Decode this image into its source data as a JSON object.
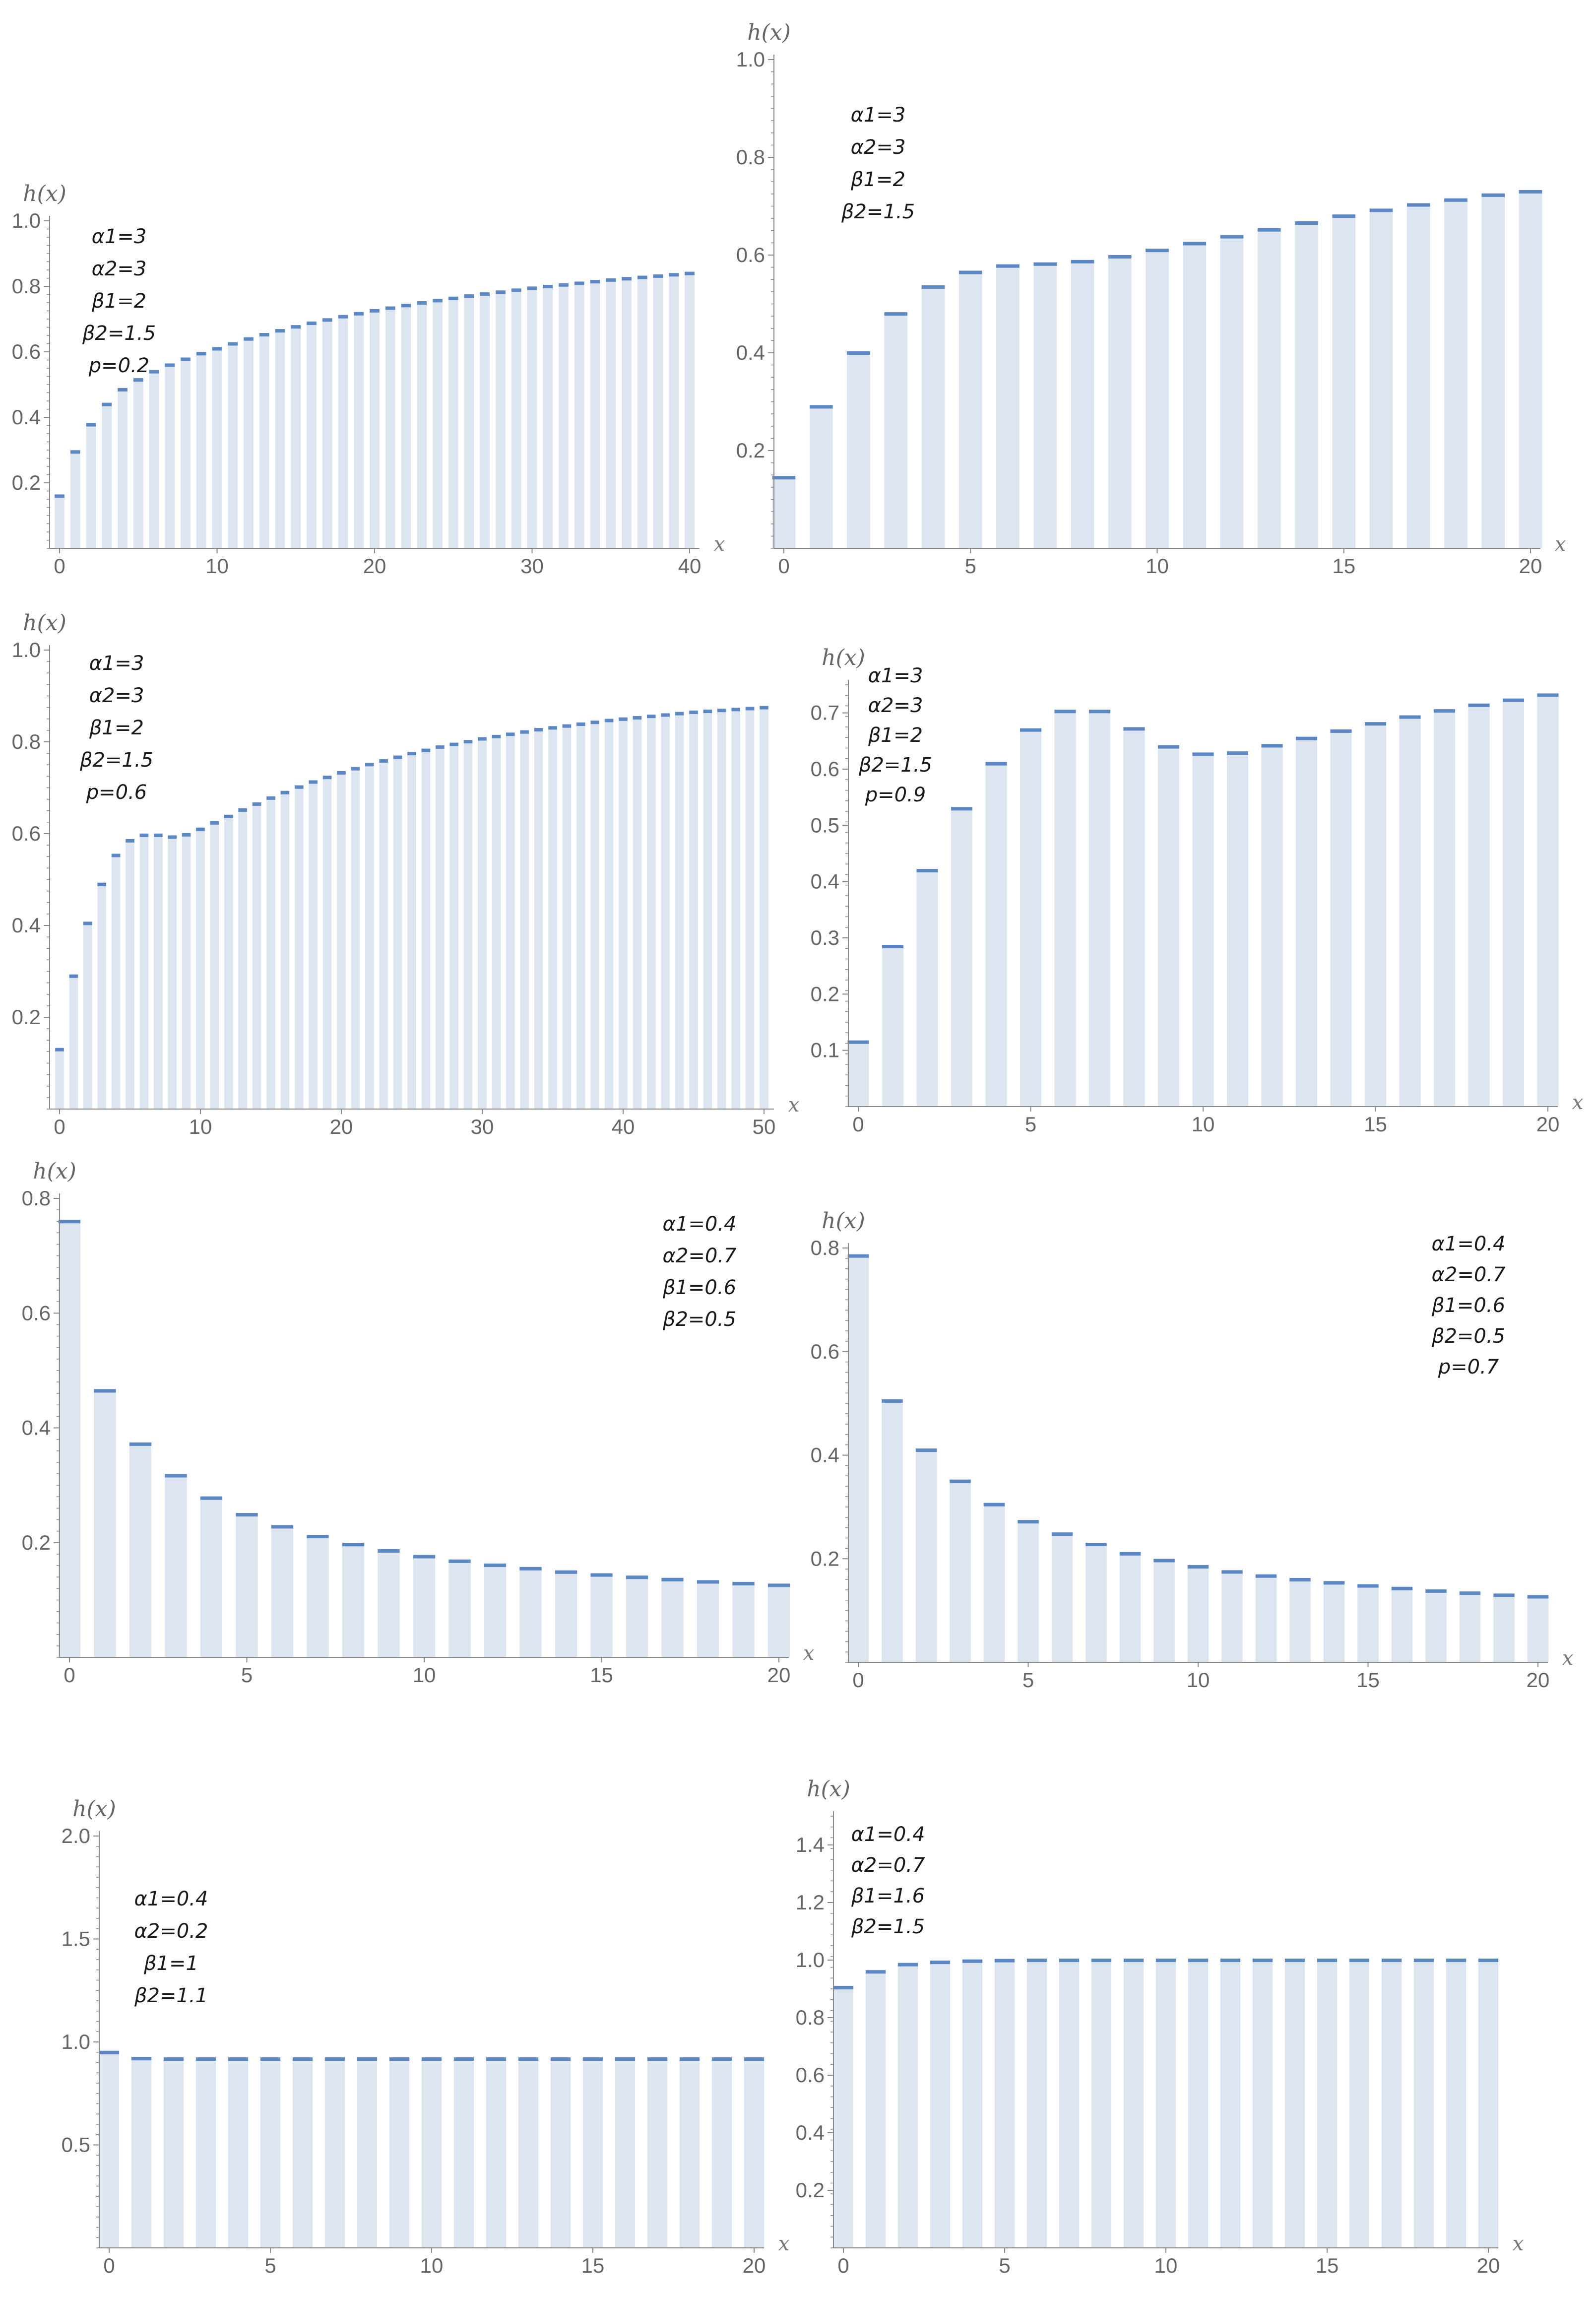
{
  "chart_data": [
    {
      "type": "bar",
      "ylabel": "h(x)",
      "xlabel": "x",
      "xlim": [
        0,
        40
      ],
      "ylim": [
        0,
        1.0
      ],
      "xticks": [
        0,
        10,
        20,
        30,
        40
      ],
      "yticks": [
        "0.2",
        "0.4",
        "0.6",
        "0.8",
        "1.0"
      ],
      "params": [
        "α1=3",
        "α2=3",
        "β1=2",
        "β2=1.5",
        "p=0.2"
      ],
      "legend": "top-left",
      "x": [
        0,
        1,
        2,
        3,
        4,
        5,
        6,
        7,
        8,
        9,
        10,
        11,
        12,
        13,
        14,
        15,
        16,
        17,
        18,
        19,
        20,
        21,
        22,
        23,
        24,
        25,
        26,
        27,
        28,
        29,
        30,
        31,
        32,
        33,
        34,
        35,
        36,
        37,
        38,
        39,
        40
      ],
      "values": [
        0.16,
        0.295,
        0.378,
        0.44,
        0.485,
        0.515,
        0.54,
        0.56,
        0.578,
        0.595,
        0.61,
        0.625,
        0.64,
        0.653,
        0.665,
        0.677,
        0.688,
        0.698,
        0.708,
        0.717,
        0.726,
        0.734,
        0.742,
        0.75,
        0.757,
        0.764,
        0.771,
        0.777,
        0.783,
        0.789,
        0.795,
        0.8,
        0.805,
        0.81,
        0.815,
        0.82,
        0.824,
        0.828,
        0.832,
        0.836,
        0.84
      ]
    },
    {
      "type": "bar",
      "ylabel": "h(x)",
      "xlabel": "x",
      "xlim": [
        0,
        20
      ],
      "ylim": [
        0,
        1.0
      ],
      "xticks": [
        0,
        5,
        10,
        15,
        20
      ],
      "yticks": [
        "0.2",
        "0.4",
        "0.6",
        "0.8",
        "1.0"
      ],
      "params": [
        "α1=3",
        "α2=3",
        "β1=2",
        "β2=1.5"
      ],
      "legend": "top-left",
      "x": [
        0,
        1,
        2,
        3,
        4,
        5,
        6,
        7,
        8,
        9,
        10,
        11,
        12,
        13,
        14,
        15,
        16,
        17,
        18,
        19,
        20
      ],
      "values": [
        0.145,
        0.29,
        0.4,
        0.48,
        0.535,
        0.565,
        0.578,
        0.582,
        0.587,
        0.597,
        0.61,
        0.624,
        0.638,
        0.652,
        0.666,
        0.68,
        0.692,
        0.703,
        0.713,
        0.723,
        0.73
      ]
    },
    {
      "type": "bar",
      "ylabel": "h(x)",
      "xlabel": "x",
      "xlim": [
        0,
        50
      ],
      "ylim": [
        0,
        1.0
      ],
      "xticks": [
        0,
        10,
        20,
        30,
        40,
        50
      ],
      "yticks": [
        "0.2",
        "0.4",
        "0.6",
        "0.8",
        "1.0"
      ],
      "params": [
        "α1=3",
        "α2=3",
        "β1=2",
        "β2=1.5",
        "p=0.6"
      ],
      "legend": "top-left",
      "x": [
        0,
        1,
        2,
        3,
        4,
        5,
        6,
        7,
        8,
        9,
        10,
        11,
        12,
        13,
        14,
        15,
        16,
        17,
        18,
        19,
        20,
        21,
        22,
        23,
        24,
        25,
        26,
        27,
        28,
        29,
        30,
        31,
        32,
        33,
        34,
        35,
        36,
        37,
        38,
        39,
        40,
        41,
        42,
        43,
        44,
        45,
        46,
        47,
        48,
        49,
        50
      ],
      "values": [
        0.13,
        0.29,
        0.405,
        0.49,
        0.553,
        0.585,
        0.597,
        0.597,
        0.593,
        0.598,
        0.61,
        0.624,
        0.638,
        0.652,
        0.665,
        0.678,
        0.69,
        0.702,
        0.713,
        0.723,
        0.733,
        0.742,
        0.751,
        0.759,
        0.767,
        0.775,
        0.782,
        0.789,
        0.795,
        0.801,
        0.807,
        0.812,
        0.817,
        0.822,
        0.827,
        0.831,
        0.835,
        0.839,
        0.843,
        0.847,
        0.85,
        0.853,
        0.856,
        0.859,
        0.862,
        0.865,
        0.867,
        0.869,
        0.871,
        0.873,
        0.875
      ]
    },
    {
      "type": "bar",
      "ylabel": "h(x)",
      "xlabel": "x",
      "xlim": [
        0,
        20
      ],
      "ylim": [
        0,
        0.75
      ],
      "xticks": [
        0,
        5,
        10,
        15,
        20
      ],
      "yticks": [
        "0.1",
        "0.2",
        "0.3",
        "0.4",
        "0.5",
        "0.6",
        "0.7"
      ],
      "params": [
        "α1=3",
        "α2=3",
        "β1=2",
        "β2=1.5",
        "p=0.9"
      ],
      "legend": "top-left",
      "x": [
        0,
        1,
        2,
        3,
        4,
        5,
        6,
        7,
        8,
        9,
        10,
        11,
        12,
        13,
        14,
        15,
        16,
        17,
        18,
        19,
        20
      ],
      "values": [
        0.115,
        0.285,
        0.42,
        0.53,
        0.61,
        0.67,
        0.703,
        0.703,
        0.672,
        0.64,
        0.627,
        0.629,
        0.642,
        0.655,
        0.668,
        0.681,
        0.693,
        0.704,
        0.714,
        0.723,
        0.732
      ]
    },
    {
      "type": "bar",
      "ylabel": "h(x)",
      "xlabel": "x",
      "xlim": [
        0,
        20
      ],
      "ylim": [
        0,
        0.8
      ],
      "xticks": [
        0,
        5,
        10,
        15,
        20
      ],
      "yticks": [
        "0.2",
        "0.4",
        "0.6",
        "0.8"
      ],
      "params": [
        "α1=0.4",
        "α2=0.7",
        "β1=0.6",
        "β2=0.5"
      ],
      "legend": "top-right",
      "x": [
        0,
        1,
        2,
        3,
        4,
        5,
        6,
        7,
        8,
        9,
        10,
        11,
        12,
        13,
        14,
        15,
        16,
        17,
        18,
        19,
        20
      ],
      "values": [
        0.76,
        0.465,
        0.372,
        0.317,
        0.278,
        0.249,
        0.228,
        0.211,
        0.197,
        0.186,
        0.176,
        0.168,
        0.161,
        0.155,
        0.149,
        0.144,
        0.14,
        0.136,
        0.132,
        0.129,
        0.126
      ]
    },
    {
      "type": "bar",
      "ylabel": "h(x)",
      "xlabel": "x",
      "xlim": [
        0,
        20
      ],
      "ylim": [
        0,
        0.8
      ],
      "xticks": [
        0,
        5,
        10,
        15,
        20
      ],
      "yticks": [
        "0.2",
        "0.4",
        "0.6",
        "0.8"
      ],
      "params": [
        "α1=0.4",
        "α2=0.7",
        "β1=0.6",
        "β2=0.5",
        "p=0.7"
      ],
      "legend": "top-right",
      "x": [
        0,
        1,
        2,
        3,
        4,
        5,
        6,
        7,
        8,
        9,
        10,
        11,
        12,
        13,
        14,
        15,
        16,
        17,
        18,
        19,
        20
      ],
      "values": [
        0.785,
        0.505,
        0.41,
        0.35,
        0.305,
        0.272,
        0.248,
        0.228,
        0.21,
        0.197,
        0.185,
        0.175,
        0.167,
        0.16,
        0.154,
        0.148,
        0.143,
        0.138,
        0.134,
        0.13,
        0.127
      ]
    },
    {
      "type": "bar",
      "ylabel": "h(x)",
      "xlabel": "x",
      "xlim": [
        0,
        20
      ],
      "ylim": [
        0,
        2.0
      ],
      "xticks": [
        0,
        5,
        10,
        15,
        20
      ],
      "yticks": [
        "0.5",
        "1.0",
        "1.5",
        "2.0"
      ],
      "params": [
        "α1=0.4",
        "α2=0.2",
        "β1=1",
        "β2=1.1"
      ],
      "legend": "top-left",
      "x": [
        0,
        1,
        2,
        3,
        4,
        5,
        6,
        7,
        8,
        9,
        10,
        11,
        12,
        13,
        14,
        15,
        16,
        17,
        18,
        19,
        20
      ],
      "values": [
        0.95,
        0.92,
        0.918,
        0.918,
        0.918,
        0.918,
        0.918,
        0.918,
        0.918,
        0.918,
        0.918,
        0.918,
        0.918,
        0.918,
        0.918,
        0.918,
        0.918,
        0.918,
        0.918,
        0.918,
        0.918
      ]
    },
    {
      "type": "bar",
      "ylabel": "h(x)",
      "xlabel": "x",
      "xlim": [
        0,
        20
      ],
      "ylim": [
        0,
        1.5
      ],
      "xticks": [
        0,
        5,
        10,
        15,
        20
      ],
      "yticks": [
        "0.2",
        "0.4",
        "0.6",
        "0.8",
        "1.0",
        "1.2",
        "1.4"
      ],
      "params": [
        "α1=0.4",
        "α2=0.7",
        "β1=1.6",
        "β2=1.5"
      ],
      "legend": "top-left",
      "x": [
        0,
        1,
        2,
        3,
        4,
        5,
        6,
        7,
        8,
        9,
        10,
        11,
        12,
        13,
        14,
        15,
        16,
        17,
        18,
        19,
        20
      ],
      "values": [
        0.905,
        0.96,
        0.985,
        0.993,
        0.997,
        0.999,
        1.0,
        1.0,
        1.0,
        1.0,
        1.0,
        1.0,
        1.0,
        1.0,
        1.0,
        1.0,
        1.0,
        1.0,
        1.0,
        1.0,
        1.0
      ]
    }
  ],
  "colors": {
    "bar_fill": "#dde5f0",
    "bar_cap": "#5b87c5",
    "axis": "#888888",
    "text": "#666666"
  }
}
